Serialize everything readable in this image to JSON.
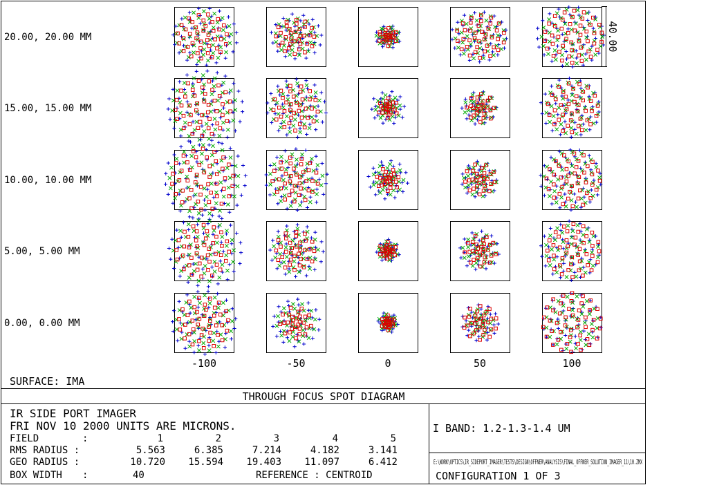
{
  "chart_data": {
    "type": "scatter",
    "title": "THROUGH FOCUS SPOT DIAGRAM",
    "surface": "SURFACE: IMA",
    "box_width_label": "40.00",
    "units": "MICRONS",
    "focus_shifts": [
      "-100",
      "-50",
      "0",
      "50",
      "100"
    ],
    "fields": [
      "20.00, 20.00 MM",
      "15.00, 15.00 MM",
      "10.00, 10.00 MM",
      "5.00, 5.00 MM",
      "0.00, 0.00 MM"
    ],
    "wavelength_series": [
      {
        "color": "#0000cc",
        "marker": "plus"
      },
      {
        "color": "#00aa00",
        "marker": "x"
      },
      {
        "color": "#dd0000",
        "marker": "square"
      }
    ]
  },
  "info": {
    "system": "IR SIDE PORT IMAGER",
    "date_line": "FRI NOV 10 2000  UNITS ARE MICRONS.",
    "field_label": "FIELD",
    "field_sep": ":",
    "field_numbers": [
      "1",
      "2",
      "3",
      "4",
      "5"
    ],
    "rms_label": "RMS RADIUS :",
    "rms_values": [
      "5.563",
      "6.385",
      "7.214",
      "4.182",
      "3.141"
    ],
    "geo_label": "GEO RADIUS :",
    "geo_values": [
      "10.720",
      "15.594",
      "19.403",
      "11.097",
      "6.412"
    ],
    "box_label": "BOX WIDTH",
    "box_sep": ":",
    "box_value": "40",
    "reference": "REFERENCE  : CENTROID",
    "band": "I BAND: 1.2-1.3-1.4 UM",
    "file_path": "E:\\WORK\\OPTICS\\IR_SIDEPORT_IMAGER\\TESTS\\DESIGN\\OFFNER\\ANALYSIS\\FINAL_OFFNER_SOLUTION_IMAGER_11\\10.ZMX",
    "configuration": "CONFIGURATION  1  OF  3"
  }
}
